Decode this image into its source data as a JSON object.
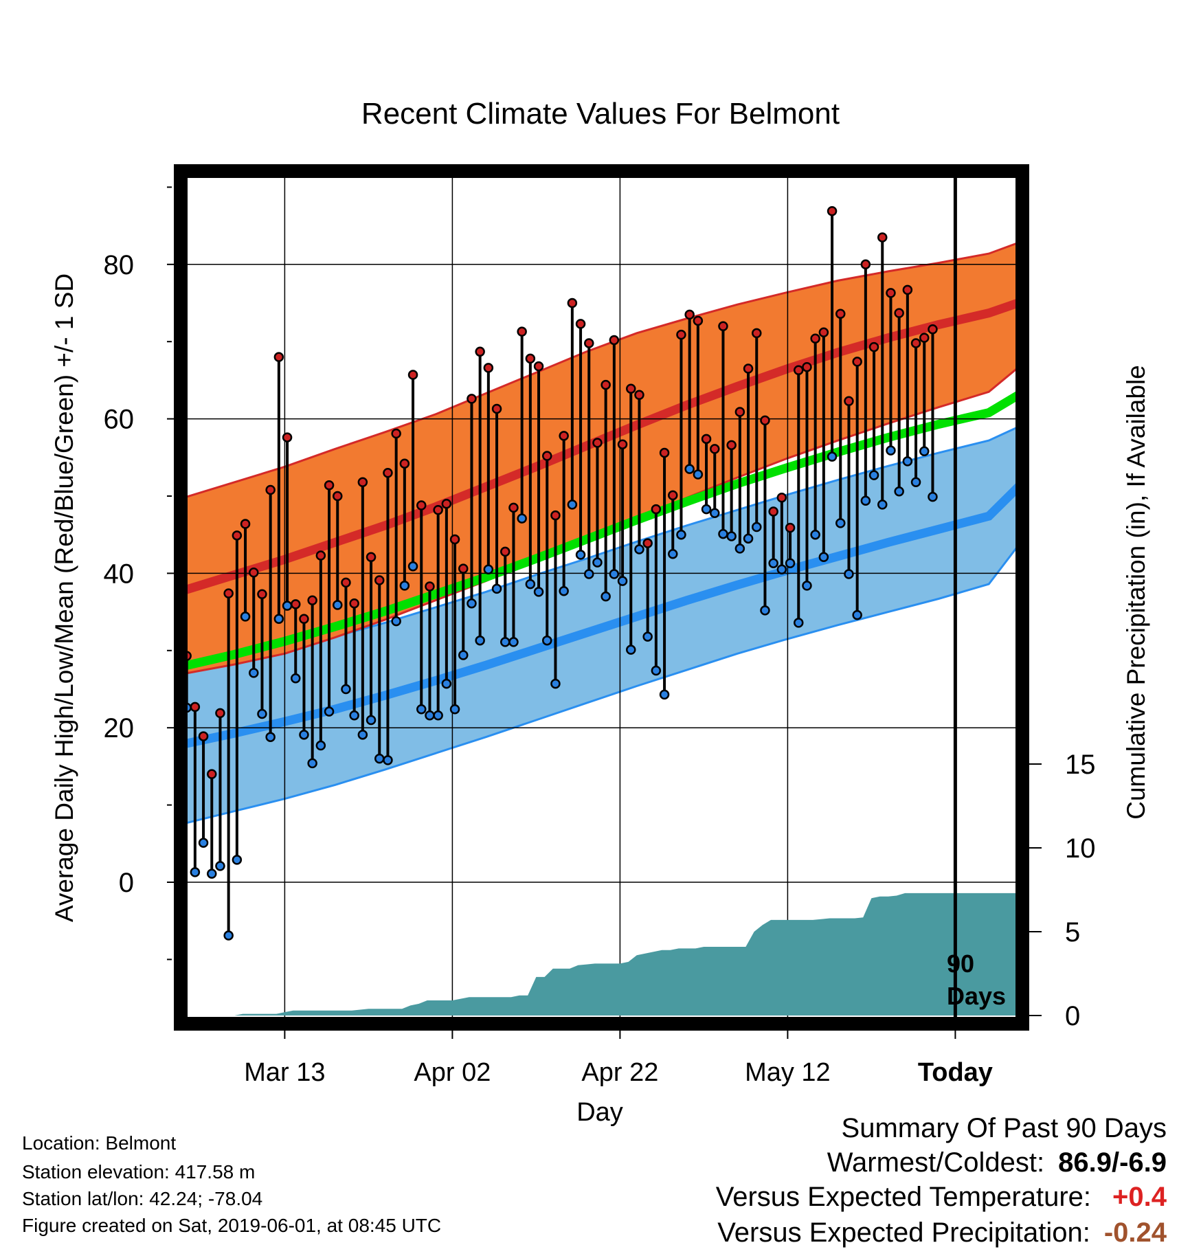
{
  "chart_data": {
    "type": "line",
    "title": "Recent Climate Values For Belmont",
    "xlabel": "Day",
    "ylabel": "Average Daily High/Low/Mean (Red/Blue/Green) +/- 1 SD",
    "y2label": "Cumulative Precipitation (in), If Available",
    "x_tick_labels": [
      "Mar 13",
      "Apr 02",
      "Apr 22",
      "May 12",
      "Today"
    ],
    "y_ticks": [
      0,
      20,
      40,
      60,
      80
    ],
    "y2_ticks": [
      0,
      5,
      10,
      15
    ],
    "ylim": [
      -16,
      92
    ],
    "y2lim": [
      0,
      40
    ],
    "today_label": [
      "90",
      "Days"
    ],
    "colors": {
      "high_band": "#f27a30",
      "high_line": "#d42a28",
      "low_band": "#80bde6",
      "low_line": "#2a8ff0",
      "mean_line": "#00e000",
      "precip": "#4a9aa0",
      "high_marker": "#cc2222",
      "low_marker": "#2a80e0"
    },
    "daily_high": [
      29.3,
      22.7,
      18.9,
      14.0,
      21.9,
      37.4,
      44.9,
      46.4,
      40.1,
      37.3,
      50.8,
      68.0,
      57.6,
      36.0,
      34.1,
      36.5,
      42.3,
      51.4,
      50.0,
      38.8,
      36.1,
      51.8,
      42.1,
      39.1,
      53.0,
      58.1,
      54.2,
      65.7,
      48.8,
      38.3,
      48.2,
      49.0,
      44.4,
      40.6,
      62.6,
      68.7,
      66.6,
      61.3,
      42.8,
      48.5,
      71.3,
      67.8,
      66.8,
      55.2,
      47.5,
      57.8,
      75.0,
      72.3,
      69.8,
      56.9,
      64.4,
      70.2,
      56.7,
      63.9,
      63.1,
      43.9,
      48.3,
      55.6,
      50.1,
      70.9,
      73.5,
      72.7,
      57.4,
      56.1,
      72.0,
      56.6,
      60.9,
      66.5,
      71.1,
      59.8,
      48.0,
      49.8,
      45.9,
      66.3,
      66.7,
      70.4,
      71.2,
      86.9,
      73.6,
      62.3,
      67.4,
      80.0,
      69.3,
      83.5,
      76.3,
      73.7,
      76.7,
      69.8,
      70.5,
      71.6
    ],
    "daily_low": [
      22.6,
      1.3,
      5.1,
      1.1,
      2.1,
      -6.9,
      2.9,
      34.4,
      27.1,
      21.8,
      18.8,
      34.1,
      35.8,
      26.4,
      19.1,
      15.4,
      17.7,
      22.1,
      35.9,
      25.0,
      21.6,
      19.1,
      21.0,
      16.0,
      15.8,
      33.8,
      38.4,
      40.9,
      22.4,
      21.6,
      21.6,
      25.7,
      22.4,
      29.4,
      36.1,
      31.3,
      40.5,
      38.0,
      31.1,
      31.1,
      47.1,
      38.6,
      37.6,
      31.3,
      25.7,
      37.7,
      48.9,
      42.4,
      39.9,
      41.4,
      37.0,
      39.9,
      39.0,
      30.1,
      43.1,
      31.8,
      27.4,
      24.3,
      42.5,
      45.0,
      53.5,
      52.8,
      48.3,
      47.8,
      45.1,
      44.8,
      43.2,
      44.5,
      46.0,
      35.2,
      41.3,
      40.5,
      41.3,
      33.6,
      38.4,
      45.0,
      42.1,
      55.1,
      46.5,
      39.9,
      34.6,
      49.4,
      52.7,
      48.9,
      55.9,
      50.6,
      54.5,
      51.8,
      55.8,
      49.9
    ],
    "precip_cumulative": [
      0,
      0,
      0,
      0,
      0,
      0,
      0,
      0.1,
      0.1,
      0.1,
      0.1,
      0.1,
      0.2,
      0.3,
      0.3,
      0.3,
      0.3,
      0.3,
      0.3,
      0.3,
      0.3,
      0.35,
      0.4,
      0.4,
      0.4,
      0.4,
      0.4,
      0.6,
      0.7,
      0.9,
      0.9,
      0.9,
      0.9,
      1.0,
      1.1,
      1.1,
      1.1,
      1.1,
      1.1,
      1.1,
      1.2,
      1.2,
      2.3,
      2.3,
      2.8,
      2.8,
      2.8,
      3.0,
      3.05,
      3.1,
      3.1,
      3.1,
      3.1,
      3.2,
      3.6,
      3.7,
      3.8,
      3.9,
      3.9,
      4.0,
      4.0,
      4.0,
      4.1,
      4.1,
      4.1,
      4.1,
      4.1,
      4.1,
      5.0,
      5.4,
      5.7,
      5.7,
      5.7,
      5.7,
      5.7,
      5.7,
      5.75,
      5.8,
      5.8,
      5.8,
      5.8,
      5.85,
      7.0,
      7.1,
      7.1,
      7.15,
      7.3,
      7.3,
      7.3,
      7.3,
      7.3,
      7.3,
      7.3,
      7.3,
      7.3,
      7.3,
      7.3,
      7.3,
      7.3,
      7.3,
      7.3
    ],
    "normal_high": [
      37.8,
      39.8,
      41.8,
      44.0,
      46.2,
      48.6,
      51.2,
      53.8,
      56.5,
      59.2,
      61.8,
      64.2,
      66.5,
      68.6,
      70.5,
      72.2,
      73.7,
      75.2
    ],
    "normal_high_upper": [
      49.8,
      51.8,
      53.8,
      56.1,
      58.3,
      60.6,
      63.3,
      66.0,
      68.7,
      71.1,
      73.0,
      74.8,
      76.4,
      77.9,
      79.1,
      80.2,
      81.4,
      83.0
    ],
    "normal_high_lower": [
      27.0,
      28.2,
      29.6,
      31.7,
      34.0,
      36.5,
      39.0,
      41.8,
      44.4,
      47.1,
      49.8,
      52.4,
      54.9,
      57.2,
      59.4,
      61.5,
      63.5,
      67.1
    ],
    "normal_mean": [
      28.0,
      29.5,
      31.2,
      33.1,
      35.1,
      37.3,
      39.5,
      41.9,
      44.4,
      46.9,
      49.3,
      51.6,
      53.7,
      55.7,
      57.6,
      59.3,
      60.8,
      63.4
    ],
    "normal_low": [
      17.9,
      19.3,
      20.8,
      22.4,
      24.2,
      26.1,
      28.1,
      30.2,
      32.3,
      34.4,
      36.5,
      38.5,
      40.4,
      42.2,
      44.0,
      45.7,
      47.4,
      51.7
    ],
    "normal_low_upper": [
      27.4,
      28.6,
      30.1,
      31.8,
      33.6,
      35.6,
      37.6,
      39.8,
      41.9,
      44.1,
      46.2,
      48.2,
      50.2,
      52.1,
      53.9,
      55.6,
      57.2,
      59.2
    ],
    "normal_low_lower": [
      7.6,
      9.2,
      10.8,
      12.6,
      14.6,
      16.7,
      18.8,
      21.0,
      23.2,
      25.4,
      27.5,
      29.6,
      31.5,
      33.3,
      35.0,
      36.7,
      38.6,
      44.3
    ],
    "normal_day_index": [
      0,
      6,
      12,
      18,
      24,
      30,
      36,
      42,
      48,
      54,
      60,
      66,
      72,
      78,
      84,
      90,
      96,
      100
    ]
  },
  "info": {
    "location": "Location: Belmont",
    "elevation": "Station elevation: 417.58 m",
    "latlon": "Station lat/lon: 42.24; -78.04",
    "created": "Figure created on Sat, 2019-06-01, at 08:45 UTC"
  },
  "summary": {
    "heading": "Summary Of Past 90 Days",
    "warmest_coldest_label": "Warmest/Coldest:",
    "warmest_coldest_value": "86.9/-6.9",
    "temp_label": "Versus Expected Temperature:",
    "temp_value": "+0.4",
    "temp_color": "#dd2222",
    "precip_label": "Versus Expected Precipitation:",
    "precip_value": "-0.24",
    "precip_color": "#a0522d"
  }
}
